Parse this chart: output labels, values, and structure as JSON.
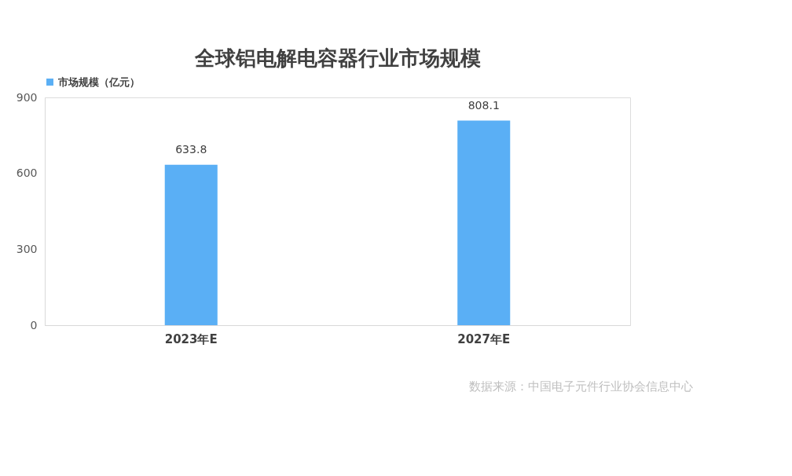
{
  "chart_data": {
    "type": "bar",
    "title": "全球铝电解电容器行业市场规模",
    "categories": [
      "2023年E",
      "2027年E"
    ],
    "series": [
      {
        "name": "市场规模（亿元）",
        "color": "#5aaff5",
        "values": [
          633.8,
          808.1
        ]
      }
    ],
    "ylim": [
      0,
      900
    ],
    "yticks": [
      0,
      300,
      600,
      900
    ],
    "grid": false,
    "legend": "top",
    "data_labels": true,
    "annotations": [
      "数据来源：中国电子元件行业协会信息中心"
    ]
  }
}
